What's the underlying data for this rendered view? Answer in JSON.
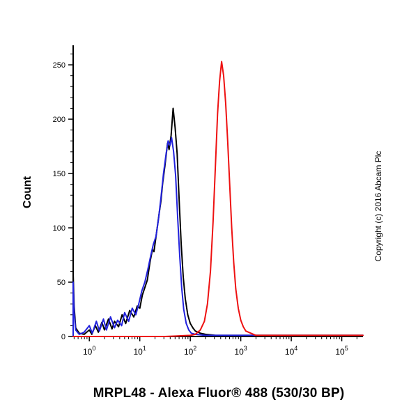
{
  "title": "MRPL48 - Alexa Fluor® 488 (530/30 BP)",
  "ylabel": "Count",
  "copyright": "Copyright (c) 2016 Abcam Plc",
  "chart_data": {
    "type": "line",
    "subtype": "flow-cytometry-histogram",
    "x_scale": "log",
    "x_range_log": [
      -0.32,
      5.42
    ],
    "x_ticks_exponents": [
      0,
      1,
      2,
      3,
      4,
      5
    ],
    "xlabel": "MRPL48 - Alexa Fluor® 488 (530/30 BP)",
    "ylabel": "Count",
    "ylim": [
      0,
      268
    ],
    "y_ticks": [
      0,
      50,
      100,
      150,
      200,
      250
    ],
    "y_minor_step": 10,
    "grid": false,
    "legend": "none",
    "axis_color": "#000000",
    "series": [
      {
        "name": "black-control",
        "color": "#000000",
        "peak": {
          "x_log10": 1.66,
          "count": 210
        },
        "points": [
          [
            -0.32,
            0
          ],
          [
            -0.32,
            58
          ],
          [
            -0.3,
            28
          ],
          [
            -0.27,
            8
          ],
          [
            -0.2,
            3
          ],
          [
            -0.1,
            2
          ],
          [
            0.0,
            6
          ],
          [
            0.05,
            2
          ],
          [
            0.12,
            10
          ],
          [
            0.18,
            4
          ],
          [
            0.25,
            13
          ],
          [
            0.3,
            6
          ],
          [
            0.38,
            16
          ],
          [
            0.45,
            7
          ],
          [
            0.5,
            14
          ],
          [
            0.58,
            9
          ],
          [
            0.65,
            20
          ],
          [
            0.72,
            12
          ],
          [
            0.8,
            24
          ],
          [
            0.88,
            18
          ],
          [
            0.95,
            28
          ],
          [
            1.0,
            26
          ],
          [
            1.05,
            38
          ],
          [
            1.1,
            45
          ],
          [
            1.15,
            52
          ],
          [
            1.2,
            68
          ],
          [
            1.25,
            80
          ],
          [
            1.28,
            78
          ],
          [
            1.33,
            95
          ],
          [
            1.38,
            112
          ],
          [
            1.42,
            125
          ],
          [
            1.45,
            140
          ],
          [
            1.5,
            158
          ],
          [
            1.55,
            178
          ],
          [
            1.58,
            172
          ],
          [
            1.62,
            185
          ],
          [
            1.66,
            210
          ],
          [
            1.7,
            192
          ],
          [
            1.74,
            168
          ],
          [
            1.78,
            125
          ],
          [
            1.82,
            85
          ],
          [
            1.86,
            55
          ],
          [
            1.9,
            35
          ],
          [
            1.95,
            20
          ],
          [
            2.0,
            12
          ],
          [
            2.05,
            8
          ],
          [
            2.1,
            5
          ],
          [
            2.2,
            3
          ],
          [
            2.3,
            2
          ],
          [
            2.5,
            1
          ],
          [
            3.0,
            1
          ],
          [
            4.0,
            1
          ],
          [
            5.42,
            1
          ]
        ]
      },
      {
        "name": "blue-control",
        "color": "#2222dd",
        "peak": {
          "x_log10": 1.63,
          "count": 183
        },
        "points": [
          [
            -0.32,
            0
          ],
          [
            -0.32,
            50
          ],
          [
            -0.3,
            22
          ],
          [
            -0.27,
            6
          ],
          [
            -0.2,
            2
          ],
          [
            -0.1,
            4
          ],
          [
            0.0,
            10
          ],
          [
            0.06,
            3
          ],
          [
            0.14,
            14
          ],
          [
            0.2,
            5
          ],
          [
            0.28,
            16
          ],
          [
            0.34,
            6
          ],
          [
            0.42,
            18
          ],
          [
            0.5,
            8
          ],
          [
            0.56,
            15
          ],
          [
            0.64,
            10
          ],
          [
            0.7,
            22
          ],
          [
            0.78,
            14
          ],
          [
            0.85,
            26
          ],
          [
            0.92,
            20
          ],
          [
            0.98,
            30
          ],
          [
            1.04,
            42
          ],
          [
            1.1,
            50
          ],
          [
            1.16,
            62
          ],
          [
            1.22,
            75
          ],
          [
            1.27,
            85
          ],
          [
            1.32,
            92
          ],
          [
            1.37,
            108
          ],
          [
            1.42,
            128
          ],
          [
            1.47,
            150
          ],
          [
            1.52,
            168
          ],
          [
            1.56,
            180
          ],
          [
            1.6,
            176
          ],
          [
            1.63,
            183
          ],
          [
            1.67,
            170
          ],
          [
            1.71,
            148
          ],
          [
            1.75,
            110
          ],
          [
            1.79,
            75
          ],
          [
            1.83,
            45
          ],
          [
            1.87,
            25
          ],
          [
            1.92,
            12
          ],
          [
            1.97,
            6
          ],
          [
            2.02,
            3
          ],
          [
            2.1,
            2
          ],
          [
            2.3,
            1
          ],
          [
            3.0,
            1
          ],
          [
            5.42,
            1
          ]
        ]
      },
      {
        "name": "red-sample",
        "color": "#ee1111",
        "peak": {
          "x_log10": 2.62,
          "count": 253
        },
        "points": [
          [
            -0.32,
            0
          ],
          [
            0.5,
            0
          ],
          [
            1.5,
            0
          ],
          [
            2.0,
            1
          ],
          [
            2.1,
            2
          ],
          [
            2.2,
            6
          ],
          [
            2.28,
            14
          ],
          [
            2.34,
            30
          ],
          [
            2.4,
            60
          ],
          [
            2.45,
            105
          ],
          [
            2.5,
            160
          ],
          [
            2.54,
            205
          ],
          [
            2.58,
            235
          ],
          [
            2.62,
            253
          ],
          [
            2.66,
            240
          ],
          [
            2.7,
            215
          ],
          [
            2.74,
            180
          ],
          [
            2.78,
            140
          ],
          [
            2.82,
            100
          ],
          [
            2.86,
            68
          ],
          [
            2.9,
            44
          ],
          [
            2.95,
            26
          ],
          [
            3.0,
            15
          ],
          [
            3.05,
            9
          ],
          [
            3.1,
            5
          ],
          [
            3.2,
            3
          ],
          [
            3.3,
            1
          ],
          [
            3.5,
            1
          ],
          [
            4.0,
            1
          ],
          [
            5.42,
            1
          ]
        ]
      }
    ]
  }
}
